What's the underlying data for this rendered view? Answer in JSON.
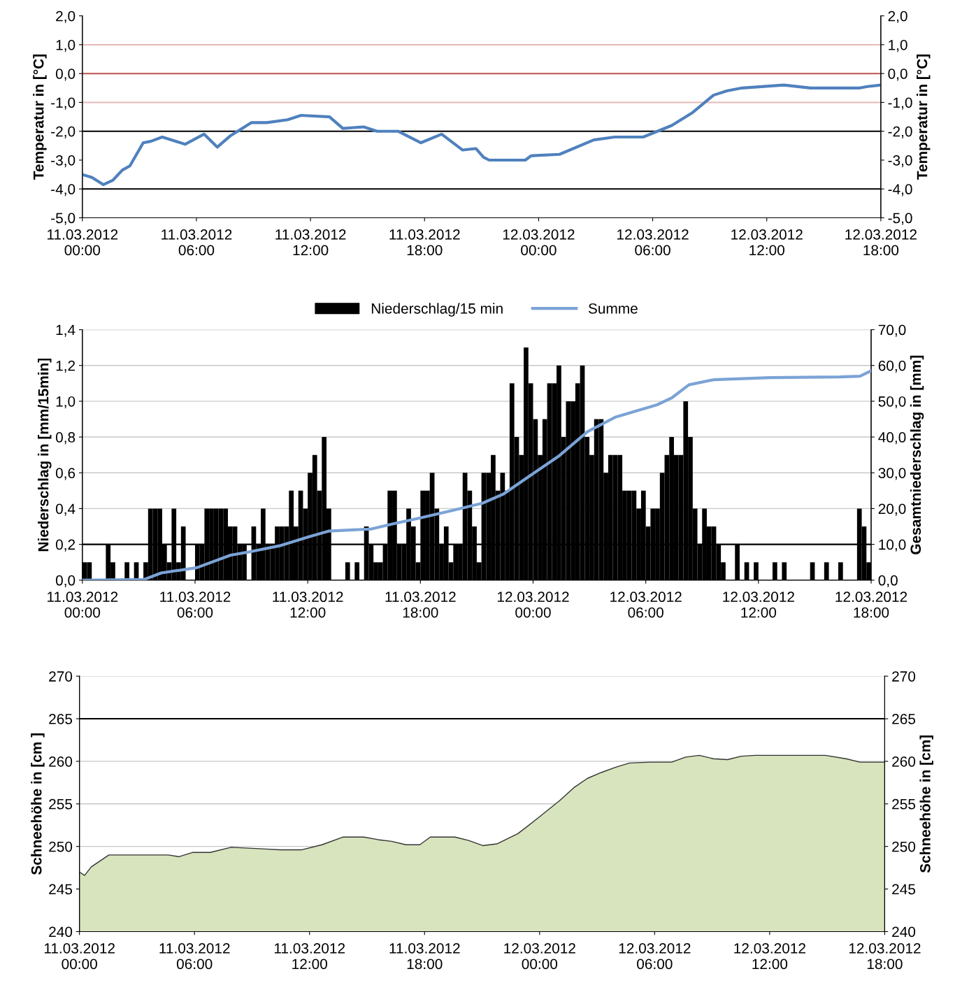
{
  "chart_data": [
    {
      "type": "line",
      "ylabel": "Temperatur in [°C]",
      "y2label": "Temperatur in [°C]",
      "xlim": [
        "2012-03-11T00:00",
        "2012-03-12T18:00"
      ],
      "ylim": [
        -5,
        2
      ],
      "y2lim": [
        -5,
        2
      ],
      "xticks": [
        {
          "value": "2012-03-11T00:00",
          "label": "11.03.2012\n00:00"
        },
        {
          "value": "2012-03-11T06:00",
          "label": "11.03.2012\n06:00"
        },
        {
          "value": "2012-03-11T12:00",
          "label": "11.03.2012\n12:00"
        },
        {
          "value": "2012-03-11T18:00",
          "label": "11.03.2012\n18:00"
        },
        {
          "value": "2012-03-12T00:00",
          "label": "12.03.2012\n00:00"
        },
        {
          "value": "2012-03-12T06:00",
          "label": "12.03.2012\n06:00"
        },
        {
          "value": "2012-03-12T12:00",
          "label": "12.03.2012\n12:00"
        },
        {
          "value": "2012-03-12T18:00",
          "label": "12.03.2012\n18:00"
        }
      ],
      "yticks": [
        {
          "value": 2,
          "label": "2,0"
        },
        {
          "value": 1,
          "label": "1,0"
        },
        {
          "value": 0,
          "label": "0,0"
        },
        {
          "value": -1,
          "label": "-1,0"
        },
        {
          "value": -2,
          "label": "-2,0"
        },
        {
          "value": -3,
          "label": "-3,0"
        },
        {
          "value": -4,
          "label": "-4,0"
        },
        {
          "value": -5,
          "label": "-5,0"
        }
      ],
      "y2ticks": [
        {
          "value": 2,
          "label": "2,0"
        },
        {
          "value": 1,
          "label": "1,0"
        },
        {
          "value": 0,
          "label": "0,0"
        },
        {
          "value": -1,
          "label": "-1,0"
        },
        {
          "value": -2,
          "label": "-2,0"
        },
        {
          "value": -3,
          "label": "-3,0"
        },
        {
          "value": -4,
          "label": "-4,0"
        },
        {
          "value": -5,
          "label": "-5,0"
        }
      ],
      "ref_lines": [
        {
          "axis": "y",
          "value": 0,
          "color": "#c0504d"
        },
        {
          "axis": "y",
          "value": 1,
          "color": "#e6b9b8"
        },
        {
          "axis": "y",
          "value": -1,
          "color": "#e6b9b8"
        },
        {
          "axis": "y",
          "value": -2,
          "color": "#000000"
        },
        {
          "axis": "y",
          "value": -4,
          "color": "#000000"
        }
      ],
      "grid": false,
      "legend": false,
      "series": [
        {
          "color": "#4f81bd",
          "x": [
            "2012-03-11T00:00",
            "2012-03-11T00:30",
            "2012-03-11T01:06",
            "2012-03-11T01:36",
            "2012-03-11T02:06",
            "2012-03-11T02:30",
            "2012-03-11T03:12",
            "2012-03-11T03:36",
            "2012-03-11T04:12",
            "2012-03-11T05:24",
            "2012-03-11T06:24",
            "2012-03-11T07:06",
            "2012-03-11T07:48",
            "2012-03-11T08:54",
            "2012-03-11T09:42",
            "2012-03-11T10:48",
            "2012-03-11T11:30",
            "2012-03-11T13:00",
            "2012-03-11T13:42",
            "2012-03-11T14:48",
            "2012-03-11T15:30",
            "2012-03-11T16:36",
            "2012-03-11T17:48",
            "2012-03-11T18:54",
            "2012-03-11T20:00",
            "2012-03-11T20:42",
            "2012-03-11T21:06",
            "2012-03-11T21:24",
            "2012-03-11T22:12",
            "2012-03-11T23:18",
            "2012-03-11T23:36",
            "2012-03-12T01:06",
            "2012-03-12T02:54",
            "2012-03-12T04:00",
            "2012-03-12T05:30",
            "2012-03-12T07:00",
            "2012-03-12T08:06",
            "2012-03-12T09:12",
            "2012-03-12T09:54",
            "2012-03-12T10:42",
            "2012-03-12T12:54",
            "2012-03-12T14:18",
            "2012-03-12T16:54",
            "2012-03-12T17:18",
            "2012-03-12T18:00"
          ],
          "values": [
            -3.5,
            -3.6,
            -3.85,
            -3.7,
            -3.35,
            -3.2,
            -2.4,
            -2.35,
            -2.2,
            -2.45,
            -2.1,
            -2.55,
            -2.15,
            -1.7,
            -1.7,
            -1.6,
            -1.45,
            -1.5,
            -1.9,
            -1.85,
            -2.0,
            -2.0,
            -2.4,
            -2.1,
            -2.65,
            -2.6,
            -2.9,
            -3.0,
            -3.0,
            -3.0,
            -2.85,
            -2.8,
            -2.3,
            -2.2,
            -2.2,
            -1.8,
            -1.35,
            -0.75,
            -0.6,
            -0.5,
            -0.4,
            -0.5,
            -0.5,
            -0.45,
            -0.4
          ]
        }
      ]
    },
    {
      "type": "bar",
      "ylabel": "Niederschlag in [mm/15min]",
      "y2label": "Gesamtniederschlag in [mm]",
      "xlim": [
        "2012-03-11T00:00",
        "2012-03-12T18:00"
      ],
      "ylim": [
        0,
        1.4
      ],
      "y2lim": [
        0,
        70
      ],
      "xticks": [
        {
          "value": "2012-03-11T00:00",
          "label": "11.03.2012\n00:00"
        },
        {
          "value": "2012-03-11T06:00",
          "label": "11.03.2012\n06:00"
        },
        {
          "value": "2012-03-11T12:00",
          "label": "11.03.2012\n12:00"
        },
        {
          "value": "2012-03-11T18:00",
          "label": "11.03.2012\n18:00"
        },
        {
          "value": "2012-03-12T00:00",
          "label": "12.03.2012\n00:00"
        },
        {
          "value": "2012-03-12T06:00",
          "label": "12.03.2012\n06:00"
        },
        {
          "value": "2012-03-12T12:00",
          "label": "12.03.2012\n12:00"
        },
        {
          "value": "2012-03-12T18:00",
          "label": "12.03.2012\n18:00"
        }
      ],
      "yticks": [
        {
          "value": 0,
          "label": "0,0"
        },
        {
          "value": 0.2,
          "label": "0,2"
        },
        {
          "value": 0.4,
          "label": "0,4"
        },
        {
          "value": 0.6,
          "label": "0,6"
        },
        {
          "value": 0.8,
          "label": "0,8"
        },
        {
          "value": 1.0,
          "label": "1,0"
        },
        {
          "value": 1.2,
          "label": "1,2"
        },
        {
          "value": 1.4,
          "label": "1,4"
        }
      ],
      "y2ticks": [
        {
          "value": 0,
          "label": "0,0"
        },
        {
          "value": 10,
          "label": "10,0"
        },
        {
          "value": 20,
          "label": "20,0"
        },
        {
          "value": 30,
          "label": "30,0"
        },
        {
          "value": 40,
          "label": "40,0"
        },
        {
          "value": 50,
          "label": "50,0"
        },
        {
          "value": 60,
          "label": "60,0"
        },
        {
          "value": 70,
          "label": "70,0"
        }
      ],
      "ref_lines": [
        {
          "axis": "y",
          "value": 0.2,
          "color": "#000000"
        }
      ],
      "grid": "y",
      "legend": "top",
      "series": [
        {
          "name": "Niederschlag/15 min",
          "type": "bar",
          "color": "#000000",
          "x": [
            "2012-03-11T00:00",
            "2012-03-11T00:15",
            "2012-03-11T00:30",
            "2012-03-11T00:45",
            "2012-03-11T01:00",
            "2012-03-11T01:15",
            "2012-03-11T01:30",
            "2012-03-11T01:45",
            "2012-03-11T02:00",
            "2012-03-11T02:15",
            "2012-03-11T02:30",
            "2012-03-11T02:45",
            "2012-03-11T03:00",
            "2012-03-11T03:15",
            "2012-03-11T03:30",
            "2012-03-11T03:45",
            "2012-03-11T04:00",
            "2012-03-11T04:15",
            "2012-03-11T04:30",
            "2012-03-11T04:45",
            "2012-03-11T05:00",
            "2012-03-11T05:15",
            "2012-03-11T05:30",
            "2012-03-11T05:45",
            "2012-03-11T06:00",
            "2012-03-11T06:15",
            "2012-03-11T06:30",
            "2012-03-11T06:45",
            "2012-03-11T07:00",
            "2012-03-11T07:15",
            "2012-03-11T07:30",
            "2012-03-11T07:45",
            "2012-03-11T08:00",
            "2012-03-11T08:15",
            "2012-03-11T08:30",
            "2012-03-11T08:45",
            "2012-03-11T09:00",
            "2012-03-11T09:15",
            "2012-03-11T09:30",
            "2012-03-11T09:45",
            "2012-03-11T10:00",
            "2012-03-11T10:15",
            "2012-03-11T10:30",
            "2012-03-11T10:45",
            "2012-03-11T11:00",
            "2012-03-11T11:15",
            "2012-03-11T11:30",
            "2012-03-11T11:45",
            "2012-03-11T12:00",
            "2012-03-11T12:15",
            "2012-03-11T12:30",
            "2012-03-11T12:45",
            "2012-03-11T13:00",
            "2012-03-11T13:15",
            "2012-03-11T13:30",
            "2012-03-11T13:45",
            "2012-03-11T14:00",
            "2012-03-11T14:15",
            "2012-03-11T14:30",
            "2012-03-11T14:45",
            "2012-03-11T15:00",
            "2012-03-11T15:15",
            "2012-03-11T15:30",
            "2012-03-11T15:45",
            "2012-03-11T16:00",
            "2012-03-11T16:15",
            "2012-03-11T16:30",
            "2012-03-11T16:45",
            "2012-03-11T17:00",
            "2012-03-11T17:15",
            "2012-03-11T17:30",
            "2012-03-11T17:45",
            "2012-03-11T18:00",
            "2012-03-11T18:15",
            "2012-03-11T18:30",
            "2012-03-11T18:45",
            "2012-03-11T19:00",
            "2012-03-11T19:15",
            "2012-03-11T19:30",
            "2012-03-11T19:45",
            "2012-03-11T20:00",
            "2012-03-11T20:15",
            "2012-03-11T20:30",
            "2012-03-11T20:45",
            "2012-03-11T21:00",
            "2012-03-11T21:15",
            "2012-03-11T21:30",
            "2012-03-11T21:45",
            "2012-03-11T22:00",
            "2012-03-11T22:15",
            "2012-03-11T22:30",
            "2012-03-11T22:45",
            "2012-03-11T23:00",
            "2012-03-11T23:15",
            "2012-03-11T23:30",
            "2012-03-11T23:45",
            "2012-03-12T00:00",
            "2012-03-12T00:15",
            "2012-03-12T00:30",
            "2012-03-12T00:45",
            "2012-03-12T01:00",
            "2012-03-12T01:15",
            "2012-03-12T01:30",
            "2012-03-12T01:45",
            "2012-03-12T02:00",
            "2012-03-12T02:15",
            "2012-03-12T02:30",
            "2012-03-12T02:45",
            "2012-03-12T03:00",
            "2012-03-12T03:15",
            "2012-03-12T03:30",
            "2012-03-12T03:45",
            "2012-03-12T04:00",
            "2012-03-12T04:15",
            "2012-03-12T04:30",
            "2012-03-12T04:45",
            "2012-03-12T05:00",
            "2012-03-12T05:15",
            "2012-03-12T05:30",
            "2012-03-12T05:45",
            "2012-03-12T06:00",
            "2012-03-12T06:15",
            "2012-03-12T06:30",
            "2012-03-12T06:45",
            "2012-03-12T07:00",
            "2012-03-12T07:15",
            "2012-03-12T07:30",
            "2012-03-12T07:45",
            "2012-03-12T08:00",
            "2012-03-12T08:15",
            "2012-03-12T08:30",
            "2012-03-12T08:45",
            "2012-03-12T09:00",
            "2012-03-12T09:15",
            "2012-03-12T09:30",
            "2012-03-12T09:45",
            "2012-03-12T10:00",
            "2012-03-12T10:15",
            "2012-03-12T10:30",
            "2012-03-12T10:45",
            "2012-03-12T11:00",
            "2012-03-12T11:15",
            "2012-03-12T11:30",
            "2012-03-12T11:45",
            "2012-03-12T12:00",
            "2012-03-12T12:15",
            "2012-03-12T12:30",
            "2012-03-12T12:45",
            "2012-03-12T13:00",
            "2012-03-12T13:15",
            "2012-03-12T13:30",
            "2012-03-12T13:45",
            "2012-03-12T14:00",
            "2012-03-12T14:15",
            "2012-03-12T14:30",
            "2012-03-12T14:45",
            "2012-03-12T15:00",
            "2012-03-12T15:15",
            "2012-03-12T15:30",
            "2012-03-12T15:45",
            "2012-03-12T16:00",
            "2012-03-12T16:15",
            "2012-03-12T16:30",
            "2012-03-12T16:45",
            "2012-03-12T17:00",
            "2012-03-12T17:15",
            "2012-03-12T17:30",
            "2012-03-12T17:45"
          ],
          "values": [
            0.1,
            0.1,
            0,
            0,
            0,
            0.2,
            0.1,
            0,
            0,
            0.1,
            0,
            0.1,
            0,
            0.1,
            0.4,
            0.4,
            0.4,
            0.2,
            0.1,
            0.4,
            0.1,
            0.3,
            0,
            0,
            0.2,
            0.2,
            0.4,
            0.4,
            0.4,
            0.4,
            0.4,
            0.3,
            0.3,
            0.2,
            0.2,
            0,
            0.3,
            0.2,
            0.4,
            0.2,
            0.2,
            0.3,
            0.3,
            0.3,
            0.5,
            0.3,
            0.5,
            0.4,
            0.6,
            0.7,
            0.5,
            0.8,
            0.4,
            0,
            0,
            0,
            0.1,
            0,
            0.1,
            0,
            0.3,
            0.2,
            0.1,
            0.1,
            0.2,
            0.5,
            0.5,
            0.2,
            0.2,
            0.4,
            0.3,
            0.1,
            0.5,
            0.5,
            0.6,
            0.4,
            0.2,
            0.3,
            0.1,
            0.2,
            0.2,
            0.6,
            0.5,
            0.3,
            0.1,
            0.6,
            0.6,
            0.7,
            0.5,
            0.6,
            0.5,
            1.1,
            0.8,
            0.7,
            1.3,
            1.1,
            0.9,
            0.7,
            0.9,
            1.1,
            1.1,
            1.2,
            0.8,
            1.0,
            1.0,
            1.1,
            1.2,
            0.8,
            0.7,
            0.9,
            0.9,
            0.6,
            0.7,
            0.7,
            0.7,
            0.5,
            0.5,
            0.5,
            0.4,
            0.5,
            0.3,
            0.4,
            0.4,
            0.6,
            0.7,
            0.8,
            0.7,
            0.7,
            1.0,
            0.8,
            0.4,
            0.2,
            0.4,
            0.3,
            0.3,
            0.2,
            0.1,
            0,
            0,
            0.2,
            0,
            0.1,
            0,
            0.1,
            0,
            0,
            0,
            0.1,
            0,
            0.1,
            0,
            0,
            0,
            0,
            0,
            0.1,
            0,
            0,
            0.1,
            0,
            0,
            0.1,
            0,
            0,
            0,
            0.4,
            0.3,
            0.1
          ]
        },
        {
          "name": "Summe",
          "type": "line",
          "axis": "y2",
          "color": "#7ba3d6",
          "x": [
            "2012-03-11T00:00",
            "2012-03-11T03:18",
            "2012-03-11T04:12",
            "2012-03-11T06:06",
            "2012-03-11T07:54",
            "2012-03-11T09:00",
            "2012-03-11T10:30",
            "2012-03-11T12:00",
            "2012-03-11T13:06",
            "2012-03-11T15:24",
            "2012-03-11T16:30",
            "2012-03-11T18:00",
            "2012-03-11T19:48",
            "2012-03-11T21:18",
            "2012-03-11T22:24",
            "2012-03-11T23:54",
            "2012-03-12T01:24",
            "2012-03-12T02:54",
            "2012-03-12T04:24",
            "2012-03-12T06:36",
            "2012-03-12T07:24",
            "2012-03-12T08:18",
            "2012-03-12T09:36",
            "2012-03-12T12:36",
            "2012-03-12T16:18",
            "2012-03-12T17:24",
            "2012-03-12T18:00"
          ],
          "values": [
            0,
            0.2,
            2,
            3.5,
            7,
            8,
            9.6,
            12,
            13.7,
            14.3,
            15.7,
            17.4,
            19.6,
            21.5,
            24,
            29.4,
            34.8,
            41.5,
            45.6,
            49,
            51,
            54.6,
            56,
            56.6,
            56.8,
            57,
            58.5
          ]
        }
      ]
    },
    {
      "type": "area",
      "ylabel": "Schneehöhe in [cm ]",
      "y2label": "Schneehöhe in [cm]",
      "xlim": [
        "2012-03-11T00:00",
        "2012-03-12T18:00"
      ],
      "ylim": [
        240,
        270
      ],
      "y2lim": [
        240,
        270
      ],
      "xticks": [
        {
          "value": "2012-03-11T00:00",
          "label": "11.03.2012\n00:00"
        },
        {
          "value": "2012-03-11T06:00",
          "label": "11.03.2012\n06:00"
        },
        {
          "value": "2012-03-11T12:00",
          "label": "11.03.2012\n12:00"
        },
        {
          "value": "2012-03-11T18:00",
          "label": "11.03.2012\n18:00"
        },
        {
          "value": "2012-03-12T00:00",
          "label": "12.03.2012\n00:00"
        },
        {
          "value": "2012-03-12T06:00",
          "label": "12.03.2012\n06:00"
        },
        {
          "value": "2012-03-12T12:00",
          "label": "12.03.2012\n12:00"
        },
        {
          "value": "2012-03-12T18:00",
          "label": "12.03.2012\n18:00"
        }
      ],
      "yticks": [
        240,
        245,
        250,
        255,
        260,
        265,
        270
      ],
      "y2ticks": [
        240,
        245,
        250,
        255,
        260,
        265,
        270
      ],
      "ref_lines": [
        {
          "axis": "y",
          "value": 265,
          "color": "#000000"
        }
      ],
      "grid": "y",
      "legend": false,
      "series": [
        {
          "color": "#d7e4bd",
          "x": [
            "2012-03-11T00:00",
            "2012-03-11T00:16",
            "2012-03-11T00:37",
            "2012-03-11T01:32",
            "2012-03-11T04:38",
            "2012-03-11T05:11",
            "2012-03-11T05:55",
            "2012-03-11T06:49",
            "2012-03-11T07:55",
            "2012-03-11T09:44",
            "2012-03-11T10:28",
            "2012-03-11T11:34",
            "2012-03-11T12:39",
            "2012-03-11T13:44",
            "2012-03-11T14:50",
            "2012-03-11T15:34",
            "2012-03-11T16:17",
            "2012-03-11T17:02",
            "2012-03-11T17:45",
            "2012-03-11T18:18",
            "2012-03-11T19:35",
            "2012-03-11T20:18",
            "2012-03-11T21:02",
            "2012-03-11T21:46",
            "2012-03-11T22:52",
            "2012-03-11T23:57",
            "2012-03-12T01:03",
            "2012-03-12T01:47",
            "2012-03-12T02:30",
            "2012-03-12T03:14",
            "2012-03-12T03:58",
            "2012-03-12T04:41",
            "2012-03-12T05:47",
            "2012-03-12T06:53",
            "2012-03-12T07:37",
            "2012-03-12T08:20",
            "2012-03-12T09:04",
            "2012-03-12T09:48",
            "2012-03-12T10:31",
            "2012-03-12T11:15",
            "2012-03-12T11:59",
            "2012-03-12T12:43",
            "2012-03-12T14:54",
            "2012-03-12T15:59",
            "2012-03-12T16:43",
            "2012-03-12T18:00"
          ],
          "values": [
            247.0,
            246.6,
            247.6,
            249.0,
            249.0,
            248.8,
            249.3,
            249.3,
            249.9,
            249.7,
            249.6,
            249.6,
            250.2,
            251.1,
            251.1,
            250.8,
            250.6,
            250.2,
            250.2,
            251.1,
            251.1,
            250.7,
            250.1,
            250.3,
            251.5,
            253.4,
            255.4,
            256.9,
            258.0,
            258.7,
            259.3,
            259.8,
            259.9,
            259.9,
            260.5,
            260.7,
            260.3,
            260.2,
            260.6,
            260.7,
            260.7,
            260.7,
            260.7,
            260.3,
            259.9,
            259.9
          ]
        }
      ]
    }
  ]
}
